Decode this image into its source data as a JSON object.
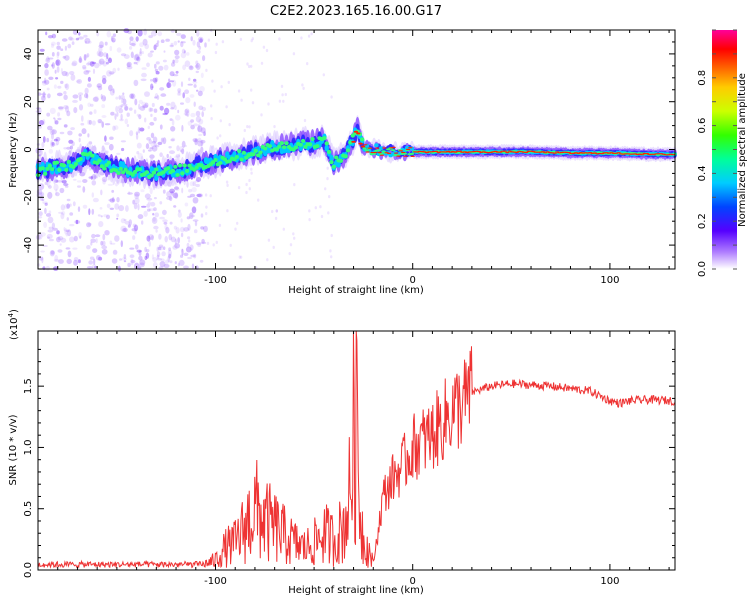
{
  "figure_title": "C2E2.2023.165.16.00.G17",
  "chart_data": [
    {
      "type": "heatmap",
      "xlabel": "Height of straight line (km)",
      "ylabel": "Frequency (Hz)",
      "xlim": [
        -190,
        133
      ],
      "ylim": [
        -50,
        50
      ],
      "xticks": [
        -100,
        0,
        100
      ],
      "yticks": [
        -40,
        -20,
        0,
        20,
        40
      ],
      "colorbar": {
        "label": "Normalized spectral amplitude",
        "range": [
          0,
          1
        ],
        "ticks": [
          "0.0",
          "0.2",
          "0.4",
          "0.6",
          "0.8"
        ],
        "tick_values": [
          0,
          0.2,
          0.4,
          0.6,
          0.8
        ]
      },
      "ridge": {
        "x": [
          -190,
          -180,
          -170,
          -165,
          -160,
          -150,
          -140,
          -130,
          -120,
          -110,
          -100,
          -90,
          -80,
          -70,
          -60,
          -50,
          -45,
          -40,
          -35,
          -30,
          -28,
          -25,
          -20,
          -10,
          0,
          20,
          40,
          60,
          80,
          100,
          120,
          133
        ],
        "y": [
          -9,
          -7,
          -6,
          -2,
          -5,
          -8,
          -9,
          -10,
          -9,
          -7,
          -5,
          -3,
          -1,
          1,
          2,
          3,
          4,
          -6,
          -3,
          5,
          8,
          1,
          0,
          -1,
          -1,
          -1,
          -1,
          -1,
          -1.5,
          -1.5,
          -2,
          -2
        ]
      }
    },
    {
      "type": "line",
      "xlabel": "Height of straight line (km)",
      "ylabel": "SNR (10 * v/v)",
      "y_multiplier_label": "(x10",
      "y_multiplier_exp": "4",
      "y_multiplier_close": ")",
      "xlim": [
        -190,
        133
      ],
      "ylim": [
        0,
        1.95
      ],
      "xticks": [
        -100,
        0,
        100
      ],
      "yticks": [
        0.0,
        0.5,
        1.0,
        1.5
      ],
      "ytick_labels": [
        "0.0",
        "0.5",
        "1.0",
        "1.5"
      ],
      "series": [
        {
          "color": "#ee3333",
          "x": [
            -190,
            -180,
            -170,
            -165,
            -160,
            -150,
            -140,
            -130,
            -120,
            -110,
            -105,
            -100,
            -95,
            -90,
            -85,
            -80,
            -75,
            -70,
            -65,
            -60,
            -55,
            -50,
            -45,
            -40,
            -35,
            -32,
            -30,
            -29,
            -28,
            -27,
            -25,
            -22,
            -20,
            -15,
            -10,
            -5,
            0,
            5,
            10,
            15,
            20,
            25,
            30,
            40,
            50,
            60,
            70,
            80,
            90,
            95,
            100,
            105,
            110,
            120,
            133
          ],
          "y": [
            0.02,
            0.03,
            0.04,
            0.08,
            0.04,
            0.05,
            0.04,
            0.05,
            0.04,
            0.03,
            0.05,
            0.08,
            0.18,
            0.22,
            0.35,
            0.5,
            0.4,
            0.35,
            0.28,
            0.22,
            0.18,
            0.22,
            0.3,
            0.25,
            0.35,
            0.6,
            1.1,
            1.7,
            1.2,
            0.55,
            0.25,
            0.15,
            0.05,
            0.6,
            0.75,
            0.85,
            1.0,
            1.05,
            1.1,
            1.2,
            1.3,
            1.35,
            1.45,
            1.5,
            1.52,
            1.51,
            1.5,
            1.48,
            1.46,
            1.42,
            1.38,
            1.36,
            1.38,
            1.39,
            1.38
          ]
        }
      ]
    }
  ]
}
